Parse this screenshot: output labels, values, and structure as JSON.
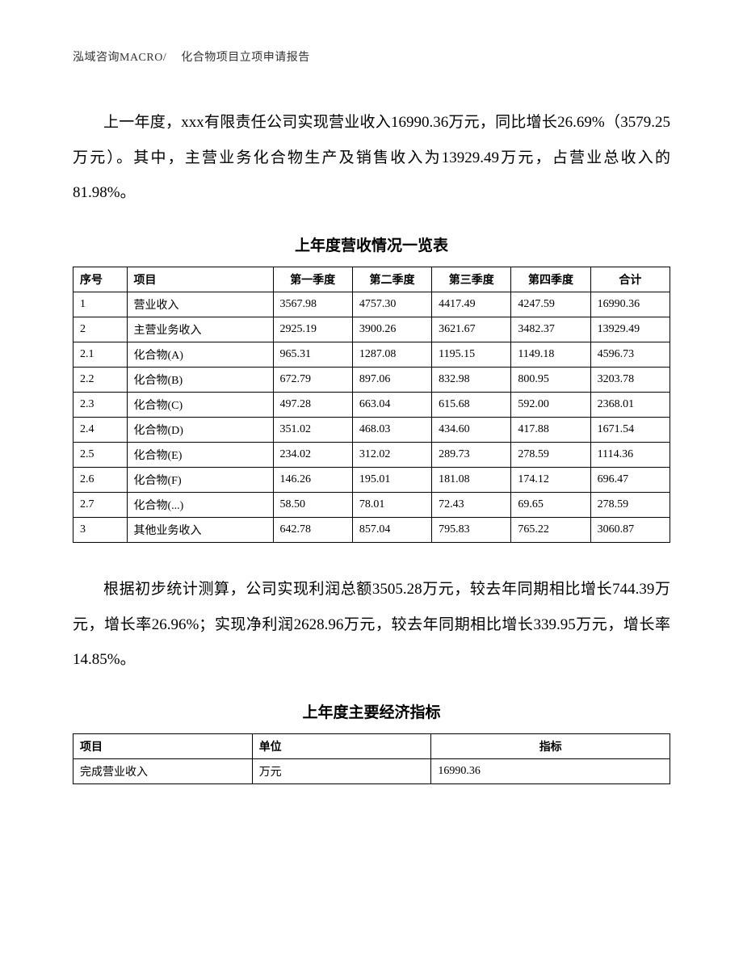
{
  "header": {
    "left": "泓域咨询MACRO/",
    "right": "化合物项目立项申请报告"
  },
  "para1": "上一年度，xxx有限责任公司实现营业收入16990.36万元，同比增长26.69%（3579.25万元）。其中，主营业务化合物生产及销售收入为13929.49万元，占营业总收入的81.98%。",
  "table1": {
    "title": "上年度营收情况一览表",
    "columns": [
      "序号",
      "项目",
      "第一季度",
      "第二季度",
      "第三季度",
      "第四季度",
      "合计"
    ],
    "rows": [
      [
        "1",
        "营业收入",
        "3567.98",
        "4757.30",
        "4417.49",
        "4247.59",
        "16990.36"
      ],
      [
        "2",
        "主营业务收入",
        "2925.19",
        "3900.26",
        "3621.67",
        "3482.37",
        "13929.49"
      ],
      [
        "2.1",
        "化合物(A)",
        "965.31",
        "1287.08",
        "1195.15",
        "1149.18",
        "4596.73"
      ],
      [
        "2.2",
        "化合物(B)",
        "672.79",
        "897.06",
        "832.98",
        "800.95",
        "3203.78"
      ],
      [
        "2.3",
        "化合物(C)",
        "497.28",
        "663.04",
        "615.68",
        "592.00",
        "2368.01"
      ],
      [
        "2.4",
        "化合物(D)",
        "351.02",
        "468.03",
        "434.60",
        "417.88",
        "1671.54"
      ],
      [
        "2.5",
        "化合物(E)",
        "234.02",
        "312.02",
        "289.73",
        "278.59",
        "1114.36"
      ],
      [
        "2.6",
        "化合物(F)",
        "146.26",
        "195.01",
        "181.08",
        "174.12",
        "696.47"
      ],
      [
        "2.7",
        "化合物(...)",
        "58.50",
        "78.01",
        "72.43",
        "69.65",
        "278.59"
      ],
      [
        "3",
        "其他业务收入",
        "642.78",
        "857.04",
        "795.83",
        "765.22",
        "3060.87"
      ]
    ]
  },
  "para2": "根据初步统计测算，公司实现利润总额3505.28万元，较去年同期相比增长744.39万元，增长率26.96%；实现净利润2628.96万元，较去年同期相比增长339.95万元，增长率14.85%。",
  "table2": {
    "title": "上年度主要经济指标",
    "columns": [
      "项目",
      "单位",
      "指标"
    ],
    "rows": [
      [
        "完成营业收入",
        "万元",
        "16990.36"
      ]
    ]
  }
}
